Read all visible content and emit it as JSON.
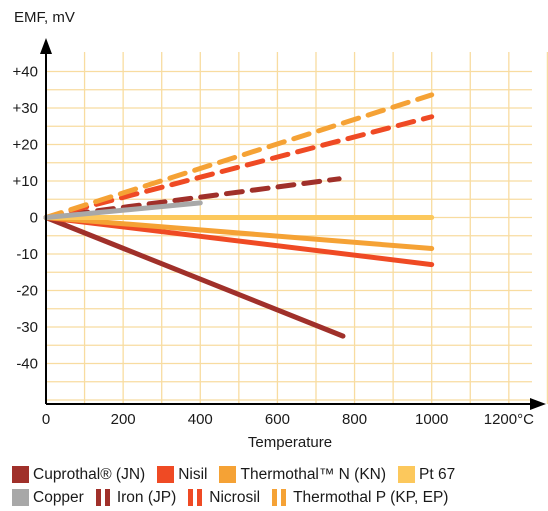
{
  "chart_data": {
    "type": "line",
    "ylabel": "EMF, mV",
    "xlabel": "Temperature",
    "x_unit": "°C",
    "xlim": [
      0,
      1300
    ],
    "ylim": [
      -50,
      45
    ],
    "x_ticks": [
      0,
      200,
      400,
      600,
      800,
      1000,
      1200
    ],
    "x_tick_labels": [
      "0",
      "200",
      "400",
      "600",
      "800",
      "1000",
      "1200"
    ],
    "y_ticks": [
      40,
      30,
      20,
      10,
      0,
      -10,
      -20,
      -30,
      -40
    ],
    "y_tick_labels": [
      "+40",
      "+30",
      "+20",
      "+10",
      "0",
      "-10",
      "-20",
      "-30",
      "-40"
    ],
    "grid": true,
    "legend_position": "bottom",
    "series": [
      {
        "name": "Cuprothal® (JN)",
        "color": "#a0302a",
        "style": "solid",
        "x": [
          0,
          770
        ],
        "y": [
          0,
          -32.5
        ]
      },
      {
        "name": "Nisil",
        "color": "#ef4a24",
        "style": "solid",
        "x": [
          0,
          1000
        ],
        "y": [
          0,
          -12.9
        ]
      },
      {
        "name": "Thermothal™ N (KN)",
        "color": "#f5a235",
        "style": "solid",
        "x": [
          0,
          1000
        ],
        "y": [
          0,
          -8.5
        ]
      },
      {
        "name": "Pt 67",
        "color": "#fcc85c",
        "style": "solid",
        "x": [
          0,
          1000
        ],
        "y": [
          0,
          0
        ]
      },
      {
        "name": "Copper",
        "color": "#a8a8a8",
        "style": "solid",
        "x": [
          0,
          400
        ],
        "y": [
          0,
          4.0
        ]
      },
      {
        "name": "Iron (JP)",
        "color": "#a0302a",
        "style": "dashed",
        "x": [
          0,
          760
        ],
        "y": [
          0,
          10.6
        ]
      },
      {
        "name": "Nicrosil",
        "color": "#ef4a24",
        "style": "dashed",
        "x": [
          0,
          1000
        ],
        "y": [
          0,
          27.6
        ]
      },
      {
        "name": "Thermothal P (KP, EP)",
        "color": "#f5a235",
        "style": "dashed",
        "x": [
          0,
          1000
        ],
        "y": [
          0,
          33.6
        ]
      }
    ]
  },
  "legend": {
    "rows": [
      [
        0,
        1,
        2,
        3
      ],
      [
        4,
        5,
        6,
        7
      ]
    ]
  }
}
